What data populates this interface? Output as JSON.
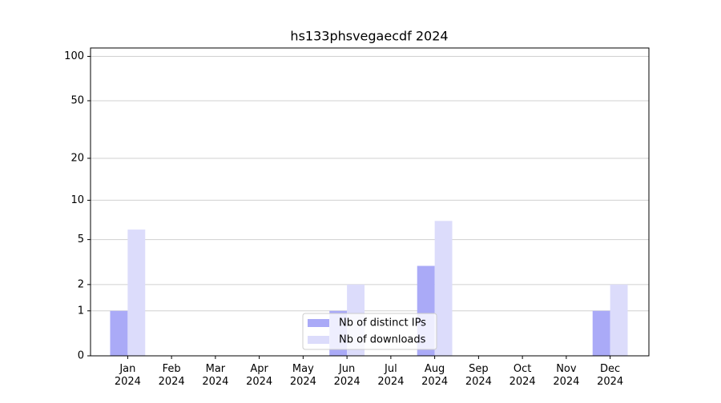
{
  "chart_data": {
    "type": "bar",
    "title": "hs133phsvegaecdf 2024",
    "categories": [
      "Jan 2024",
      "Feb 2024",
      "Mar 2024",
      "Apr 2024",
      "May 2024",
      "Jun 2024",
      "Jul 2024",
      "Aug 2024",
      "Sep 2024",
      "Oct 2024",
      "Nov 2024",
      "Dec 2024"
    ],
    "series": [
      {
        "name": "Nb of distinct IPs",
        "color": "#aaaaf7",
        "values": [
          1,
          0,
          0,
          0,
          0,
          1,
          0,
          3,
          0,
          0,
          0,
          1
        ]
      },
      {
        "name": "Nb of downloads",
        "color": "#dcdcfb",
        "values": [
          6,
          0,
          0,
          0,
          0,
          2,
          0,
          7,
          0,
          0,
          0,
          2
        ]
      }
    ],
    "yscale": "symlog",
    "ylim": [
      0,
      114
    ],
    "yticks": [
      0,
      1,
      2,
      5,
      10,
      20,
      50,
      100
    ],
    "grid": true,
    "legend": "lower center"
  }
}
